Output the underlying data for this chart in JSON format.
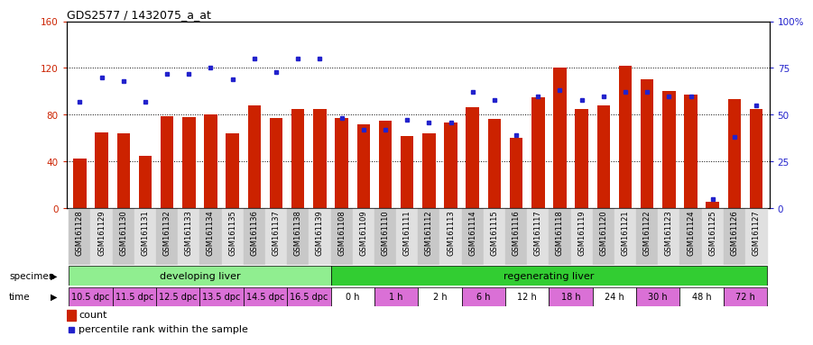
{
  "title": "GDS2577 / 1432075_a_at",
  "xlabels": [
    "GSM161128",
    "GSM161129",
    "GSM161130",
    "GSM161131",
    "GSM161132",
    "GSM161133",
    "GSM161134",
    "GSM161135",
    "GSM161136",
    "GSM161137",
    "GSM161138",
    "GSM161139",
    "GSM161108",
    "GSM161109",
    "GSM161110",
    "GSM161111",
    "GSM161112",
    "GSM161113",
    "GSM161114",
    "GSM161115",
    "GSM161116",
    "GSM161117",
    "GSM161118",
    "GSM161119",
    "GSM161120",
    "GSM161121",
    "GSM161122",
    "GSM161123",
    "GSM161124",
    "GSM161125",
    "GSM161126",
    "GSM161127"
  ],
  "count_values": [
    42,
    65,
    64,
    45,
    79,
    78,
    80,
    64,
    88,
    77,
    85,
    85,
    77,
    72,
    75,
    62,
    64,
    73,
    86,
    76,
    60,
    95,
    120,
    85,
    88,
    122,
    110,
    100,
    97,
    5,
    93,
    85
  ],
  "percentile_values": [
    57,
    70,
    68,
    57,
    72,
    72,
    75,
    69,
    80,
    73,
    80,
    80,
    48,
    42,
    42,
    47,
    46,
    46,
    62,
    58,
    39,
    60,
    63,
    58,
    60,
    62,
    62,
    60,
    60,
    5,
    38,
    55
  ],
  "specimen_groups": [
    {
      "label": "developing liver",
      "start": 0,
      "end": 11,
      "color": "#90ee90"
    },
    {
      "label": "regenerating liver",
      "start": 12,
      "end": 31,
      "color": "#32cd32"
    }
  ],
  "time_groups": [
    {
      "label": "10.5 dpc",
      "start": 0,
      "end": 1,
      "color": "#da70d6"
    },
    {
      "label": "11.5 dpc",
      "start": 2,
      "end": 3,
      "color": "#da70d6"
    },
    {
      "label": "12.5 dpc",
      "start": 4,
      "end": 5,
      "color": "#da70d6"
    },
    {
      "label": "13.5 dpc",
      "start": 6,
      "end": 7,
      "color": "#da70d6"
    },
    {
      "label": "14.5 dpc",
      "start": 8,
      "end": 9,
      "color": "#da70d6"
    },
    {
      "label": "16.5 dpc",
      "start": 10,
      "end": 11,
      "color": "#da70d6"
    },
    {
      "label": "0 h",
      "start": 12,
      "end": 13,
      "color": "#ffffff"
    },
    {
      "label": "1 h",
      "start": 14,
      "end": 15,
      "color": "#da70d6"
    },
    {
      "label": "2 h",
      "start": 16,
      "end": 17,
      "color": "#ffffff"
    },
    {
      "label": "6 h",
      "start": 18,
      "end": 19,
      "color": "#da70d6"
    },
    {
      "label": "12 h",
      "start": 20,
      "end": 21,
      "color": "#ffffff"
    },
    {
      "label": "18 h",
      "start": 22,
      "end": 23,
      "color": "#da70d6"
    },
    {
      "label": "24 h",
      "start": 24,
      "end": 25,
      "color": "#ffffff"
    },
    {
      "label": "30 h",
      "start": 26,
      "end": 27,
      "color": "#da70d6"
    },
    {
      "label": "48 h",
      "start": 28,
      "end": 29,
      "color": "#ffffff"
    },
    {
      "label": "72 h",
      "start": 30,
      "end": 31,
      "color": "#da70d6"
    }
  ],
  "bar_color": "#cc2200",
  "marker_color": "#2222cc",
  "ylim_left": [
    0,
    160
  ],
  "ylim_right": [
    0,
    100
  ],
  "yticks_left": [
    0,
    40,
    80,
    120,
    160
  ],
  "yticks_right": [
    0,
    25,
    50,
    75,
    100
  ],
  "ytick_labels_right": [
    "0",
    "25",
    "50",
    "75",
    "100%"
  ],
  "background_color": "#ffffff"
}
